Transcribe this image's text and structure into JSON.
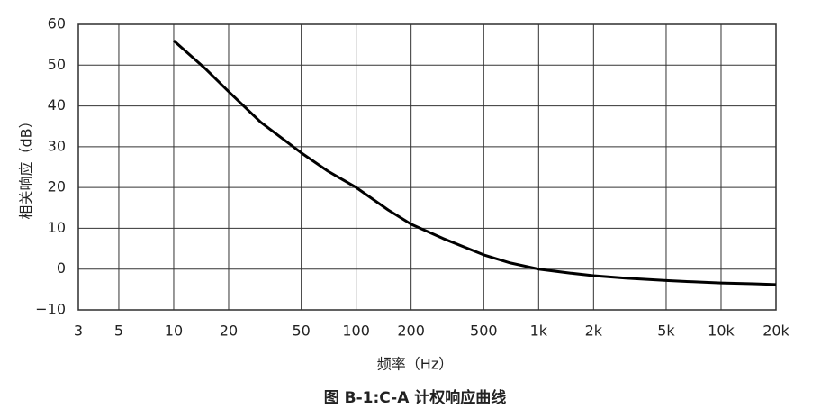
{
  "chart_data": {
    "type": "line",
    "caption": "图 B-1:C-A 计权响应曲线",
    "x_label": "频率（Hz）",
    "y_label": "相关响应（dB）",
    "x_scale": "log",
    "grid": true,
    "x": [
      10,
      15,
      20,
      30,
      50,
      70,
      100,
      150,
      200,
      300,
      500,
      700,
      1000,
      1500,
      2000,
      3000,
      5000,
      7000,
      10000,
      15000,
      20000
    ],
    "series": [
      {
        "name": "C-A",
        "color": "#000000",
        "values": [
          56,
          49,
          43.5,
          36,
          28.5,
          24,
          20,
          14.5,
          11,
          7.5,
          3.5,
          1.5,
          0,
          -1,
          -1.6,
          -2.2,
          -2.8,
          -3.1,
          -3.4,
          -3.6,
          -3.8
        ]
      }
    ],
    "xlim": [
      3,
      20000
    ],
    "xticks": [
      3,
      5,
      10,
      20,
      50,
      100,
      200,
      500,
      {
        "value": 1000,
        "label": "1k"
      },
      {
        "value": 2000,
        "label": "2k"
      },
      {
        "value": 5000,
        "label": "5k"
      },
      {
        "value": 10000,
        "label": "10k"
      },
      {
        "value": 20000,
        "label": "20k"
      }
    ],
    "ylim": [
      -10,
      60
    ],
    "yticks": [
      {
        "value": -10,
        "label": "−10"
      },
      0,
      10,
      20,
      30,
      40,
      50,
      60
    ]
  }
}
